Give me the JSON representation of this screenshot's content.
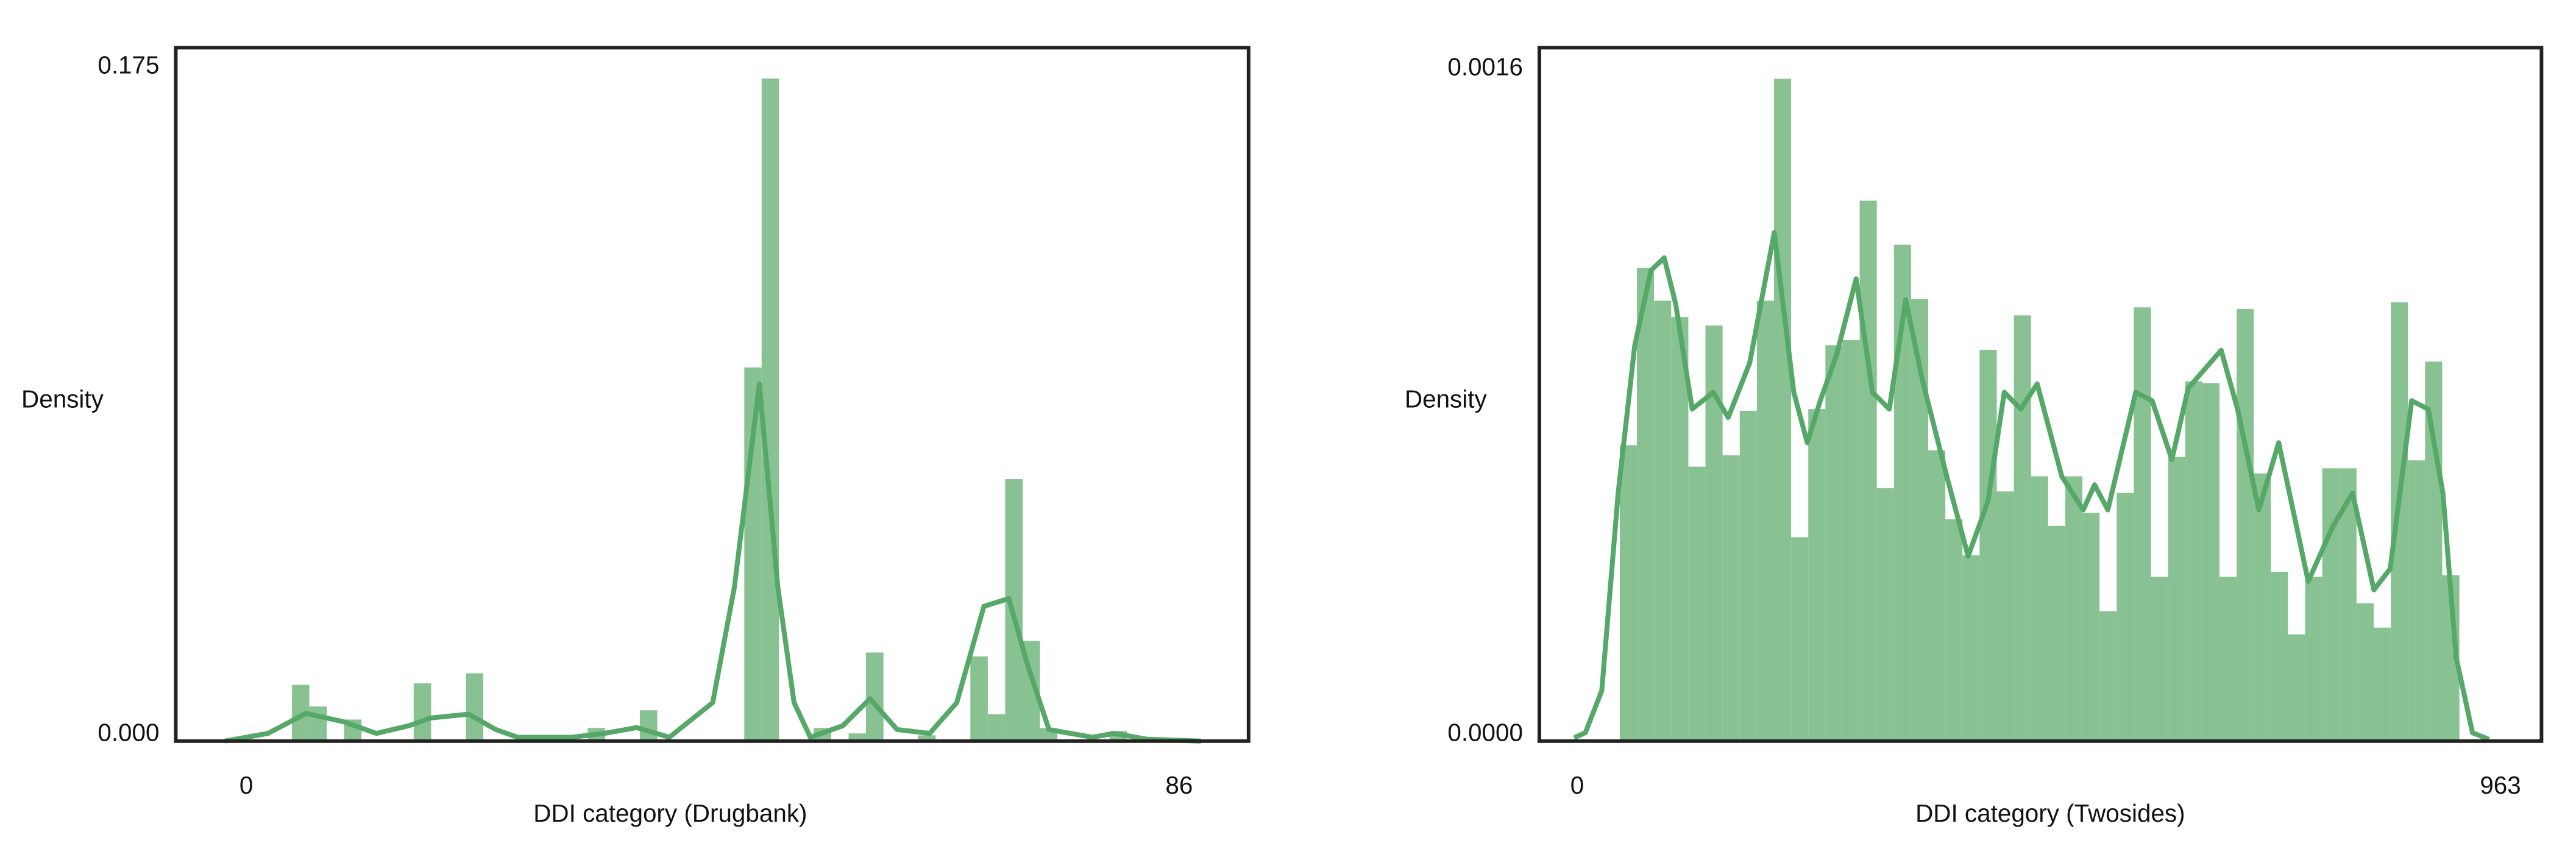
{
  "chart_data": [
    {
      "type": "histogram",
      "xlabel": "DDI category (Drugbank)",
      "ylabel": "Density",
      "xlim": [
        -6.5,
        92.4
      ],
      "ylim": [
        0,
        0.18
      ],
      "xticks": [
        0,
        86
      ],
      "yticks": [
        {
          "value": 0,
          "label": "0.000"
        },
        0.175
      ],
      "grid": false,
      "color": "#88c292",
      "bins": [
        1.0,
        2.6,
        4.21,
        5.81,
        7.42,
        9.02,
        10.62,
        12.23,
        13.83,
        15.43,
        17.04,
        18.64,
        20.25,
        21.85,
        23.45,
        25.06,
        26.66,
        28.26,
        29.87,
        31.47,
        33.08,
        34.68,
        36.28,
        37.89,
        39.49,
        41.09,
        42.7,
        44.3,
        45.91,
        47.51,
        49.11,
        50.72,
        52.32,
        53.92,
        55.53,
        57.13,
        58.74,
        60.34,
        61.94,
        63.55,
        65.15,
        66.75,
        68.36,
        69.96,
        71.57,
        73.17,
        74.77,
        76.38,
        77.98,
        79.58,
        81.19,
        82.79,
        84.4,
        86.0
      ],
      "values": [
        0,
        0,
        0.0146,
        0.009,
        0,
        0.0056,
        0,
        0,
        0,
        0.015,
        0,
        0,
        0.0176,
        0,
        0,
        0,
        0,
        0,
        0,
        0.0034,
        0,
        0,
        0.008,
        0,
        0,
        0,
        0,
        0,
        0.097,
        0.172,
        0,
        0,
        0.0034,
        0,
        0.002,
        0.023,
        0,
        0,
        0.0015,
        0,
        0,
        0.022,
        0.007,
        0.068,
        0.026,
        0.0034,
        0,
        0,
        0,
        0.0026,
        0,
        0,
        0
      ],
      "kde": {
        "color": "#55a868",
        "x": [
          -2,
          2,
          5.5,
          9,
          12,
          15,
          17,
          20.5,
          23,
          25,
          30,
          33,
          36,
          39,
          43,
          45,
          47.3,
          49,
          50.5,
          52,
          55,
          57.5,
          60,
          63,
          65.5,
          68,
          70.3,
          72,
          74,
          78,
          80,
          83,
          88
        ],
        "values": [
          0,
          0.002,
          0.0072,
          0.005,
          0.002,
          0.004,
          0.006,
          0.007,
          0.003,
          0.001,
          0.001,
          0.002,
          0.0035,
          0.001,
          0.01,
          0.04,
          0.0927,
          0.04,
          0.01,
          0.001,
          0.004,
          0.011,
          0.003,
          0.002,
          0.01,
          0.035,
          0.037,
          0.02,
          0.003,
          0.001,
          0.002,
          0.0005,
          0
        ]
      }
    },
    {
      "type": "histogram",
      "xlabel": "DDI category (Twosides)",
      "ylabel": "Density",
      "xlim": [
        -39.4,
        1005.8
      ],
      "ylim": [
        0,
        0.00165
      ],
      "xticks": [
        0,
        963
      ],
      "yticks": [
        {
          "value": 0,
          "label": "0.0000"
        },
        0.0016
      ],
      "grid": false,
      "color": "#88c292",
      "bins": [
        44.5,
        62.37,
        80.24,
        98.11,
        115.98,
        133.85,
        151.72,
        169.59,
        187.46,
        205.33,
        223.2,
        241.07,
        258.94,
        276.81,
        294.68,
        312.55,
        330.42,
        348.29,
        366.16,
        384.03,
        401.9,
        419.77,
        437.64,
        455.51,
        473.38,
        491.25,
        509.12,
        526.99,
        544.86,
        562.73,
        580.6,
        598.47,
        616.34,
        634.21,
        652.08,
        669.95,
        687.82,
        705.69,
        723.56,
        741.43,
        759.3,
        777.17,
        795.04,
        812.91,
        830.78,
        848.65,
        866.52,
        884.39,
        902.26,
        920.13
      ],
      "values": [
        0.000704,
        0.001126,
        0.001048,
        0.001009,
        0.000653,
        0.000989,
        0.00068,
        0.000786,
        0.001048,
        0.001576,
        0.000485,
        0.00079,
        0.000942,
        0.000954,
        0.001286,
        0.000602,
        0.001181,
        0.001052,
        0.000692,
        0.000528,
        0.000442,
        0.000931,
        0.000594,
        0.001013,
        0.00063,
        0.000512,
        0.00063,
        0.000543,
        0.000309,
        0.00059,
        0.001032,
        0.000391,
        0.000676,
        0.000856,
        0.000852,
        0.000391,
        0.001028,
        0.000637,
        0.000403,
        0.000254,
        0.000391,
        0.000649,
        0.000649,
        0.000328,
        0.00027,
        0.001044,
        0.000668,
        0.000903,
        0.000395
      ],
      "kde": {
        "color": "#55a868",
        "x": [
          -3,
          8.6,
          25.7,
          42.8,
          60,
          77,
          90.8,
          102.8,
          120,
          142,
          157.6,
          180,
          205.6,
          226,
          240,
          253.6,
          270.7,
          291,
          308,
          325.6,
          342.7,
          360,
          385.5,
          407.8,
          428.4,
          445.5,
          462.7,
          479.8,
          505.5,
          527.8,
          539.7,
          553.5,
          582.6,
          599.7,
          620.3,
          637.4,
          671.7,
          688.8,
          711,
          731.7,
          762.5,
          788,
          808.8,
          831,
          848,
          870.4,
          887.6,
          903,
          916.7,
          933.8,
          951
        ],
        "values": [
          8e-06,
          2e-05,
          0.00012,
          0.00059,
          0.00094,
          0.00112,
          0.00115,
          0.00104,
          0.00079,
          0.00083,
          0.00077,
          0.0009,
          0.00121,
          0.00083,
          0.00071,
          0.00081,
          0.00092,
          0.0011,
          0.00083,
          0.00079,
          0.00105,
          0.00086,
          0.00063,
          0.00044,
          0.00057,
          0.00083,
          0.00079,
          0.00085,
          0.00063,
          0.00055,
          0.00061,
          0.00055,
          0.00083,
          0.00081,
          0.00067,
          0.00084,
          0.00093,
          0.00079,
          0.00055,
          0.00071,
          0.00038,
          0.00051,
          0.00059,
          0.00036,
          0.00041,
          0.00081,
          0.00079,
          0.00059,
          0.0002,
          2e-05,
          4e-06
        ]
      }
    }
  ]
}
